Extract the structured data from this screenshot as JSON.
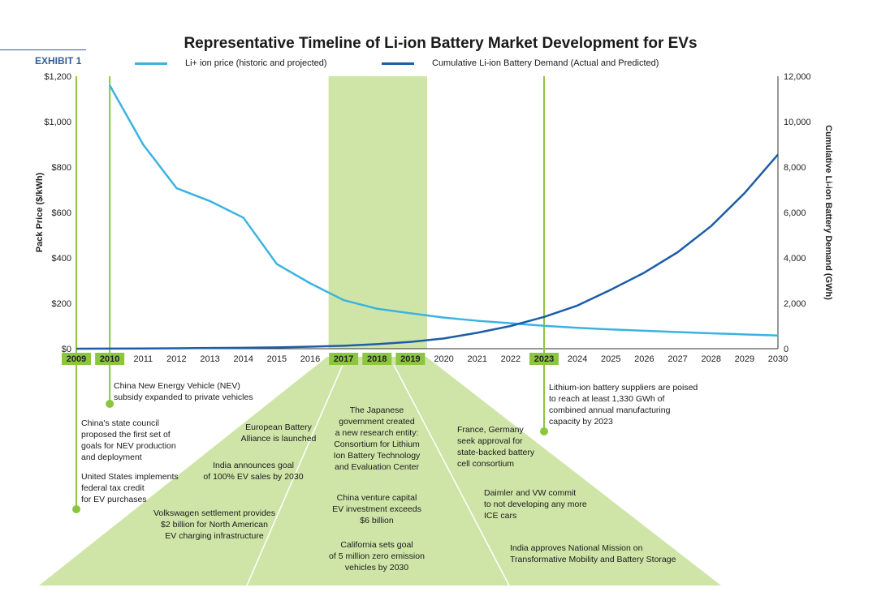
{
  "header": {
    "exhibit": "EXHIBIT 1"
  },
  "chart_data": {
    "type": "line",
    "title": "Representative Timeline of Li-ion Battery Market Development for EVs",
    "x": [
      2009,
      2010,
      2011,
      2012,
      2013,
      2014,
      2015,
      2016,
      2017,
      2018,
      2019,
      2020,
      2021,
      2022,
      2023,
      2024,
      2025,
      2026,
      2027,
      2028,
      2029,
      2030
    ],
    "x_tick_labels": [
      "2009",
      "2010",
      "2011",
      "2012",
      "2013",
      "2014",
      "2015",
      "2016",
      "2017",
      "2018",
      "2019",
      "2020",
      "2021",
      "2022",
      "2023",
      "2024",
      "2025",
      "2026",
      "2027",
      "2028",
      "2029",
      "2030"
    ],
    "highlighted_years": [
      "2009",
      "2010",
      "2017",
      "2018",
      "2019",
      "2023"
    ],
    "xlim": [
      2009,
      2030
    ],
    "ylabel": "Pack Price ($/kWh)",
    "y2label": "Cumulative Li-ion Battery Demand (GWh)",
    "ylim": [
      0,
      1200
    ],
    "y2lim": [
      0,
      12000
    ],
    "y_ticks": [
      "$0",
      "$200",
      "$400",
      "$600",
      "$800",
      "$1,000",
      "$1,200"
    ],
    "y2_ticks": [
      "0",
      "2,000",
      "4,000",
      "6,000",
      "8,000",
      "10,000",
      "12,000"
    ],
    "highlight_band": [
      2016.55,
      2019.5
    ],
    "series": [
      {
        "name": "Li+ ion price (historic and projected)",
        "axis": "left",
        "color": "#3bb3e0",
        "x": [
          2010,
          2011,
          2012,
          2013,
          2014,
          2015,
          2016,
          2017,
          2018,
          2019,
          2020,
          2021,
          2022,
          2023,
          2024,
          2025,
          2026,
          2027,
          2028,
          2029,
          2030
        ],
        "values": [
          1160,
          899,
          707,
          650,
          577,
          373,
          288,
          214,
          176,
          156,
          137,
          123,
          112,
          101,
          92,
          85,
          79,
          73,
          68,
          63,
          58
        ]
      },
      {
        "name": "Cumulative Li-ion Battery Demand (Actual and Predicted)",
        "axis": "right",
        "color": "#1c5da8",
        "x": [
          2009,
          2010,
          2011,
          2012,
          2013,
          2014,
          2015,
          2016,
          2017,
          2018,
          2019,
          2020,
          2021,
          2022,
          2023,
          2024,
          2025,
          2026,
          2027,
          2028,
          2029,
          2030
        ],
        "values": [
          0,
          5,
          10,
          20,
          30,
          40,
          60,
          90,
          130,
          200,
          300,
          450,
          700,
          1000,
          1400,
          1900,
          2600,
          3350,
          4250,
          5400,
          6850,
          8550
        ]
      }
    ],
    "milestones": [
      {
        "year": "2009",
        "lines": [
          "China's state council",
          "proposed the first set of",
          "goals for NEV production",
          "and deployment",
          "",
          "United States implements",
          "federal tax credit",
          "for EV purchases"
        ]
      },
      {
        "year": "2010",
        "lines": [
          "China New Energy Vehicle (NEV)",
          "subsidy expanded to private vehicles"
        ]
      },
      {
        "year": "2017",
        "items": [
          [
            "European Battery",
            "Alliance is launched"
          ],
          [
            "India announces goal",
            "of 100% EV sales by 2030"
          ],
          [
            "Volkswagen settlement provides",
            "$2 billion for North American",
            "EV charging infrastructure"
          ]
        ]
      },
      {
        "year": "2018",
        "items": [
          [
            "The Japanese",
            "government created",
            "a new research entity:",
            "Consortium for Lithium",
            "Ion Battery Technology",
            "and Evaluation Center"
          ],
          [
            "China venture capital",
            "EV investment exceeds",
            "$6 billion"
          ],
          [
            "California sets goal",
            "of 5 million zero emission",
            "vehicles by 2030"
          ]
        ]
      },
      {
        "year": "2019",
        "items": [
          [
            "France, Germany",
            "seek approval for",
            "state-backed battery",
            "cell consortium"
          ],
          [
            "Daimler and VW commit",
            "to not developing any more",
            "ICE cars"
          ],
          [
            "India approves National Mission on",
            "Transformative Mobility and Battery Storage"
          ]
        ]
      },
      {
        "year": "2023",
        "lines": [
          "Lithium-ion battery suppliers are poised",
          "to reach at least 1,330 GWh of",
          "combined annual manufacturing",
          "capacity by 2023"
        ]
      }
    ],
    "grid": false,
    "legend_position": "top"
  }
}
